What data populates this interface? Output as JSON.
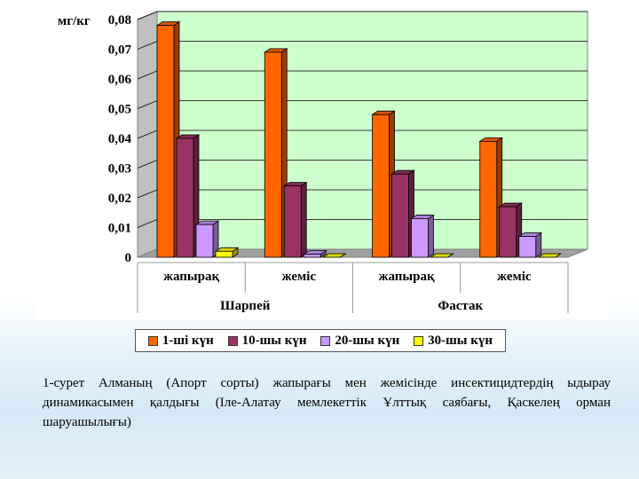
{
  "chart_data": {
    "type": "bar",
    "ylabel": "мг/кг",
    "ylim": [
      0,
      0.08
    ],
    "yticks": [
      "0",
      "0,01",
      "0,02",
      "0,03",
      "0,04",
      "0,05",
      "0,06",
      "0,07",
      "0,08"
    ],
    "categories": [
      "жапырақ",
      "жеміс",
      "жапырақ",
      "жеміс"
    ],
    "groups": [
      "Шарпей",
      "Фастак"
    ],
    "series": [
      {
        "name": "1-ші күн",
        "color": "#ff6600",
        "values": [
          0.078,
          0.069,
          0.048,
          0.039
        ]
      },
      {
        "name": "10-шы күн",
        "color": "#993366",
        "values": [
          0.04,
          0.024,
          0.028,
          0.017
        ]
      },
      {
        "name": "20-шы күн",
        "color": "#cc99ff",
        "values": [
          0.011,
          0.001,
          0.013,
          0.007
        ]
      },
      {
        "name": "30-шы күн",
        "color": "#ffff00",
        "values": [
          0.002,
          0.0,
          0.0,
          0.0
        ]
      }
    ],
    "grid": true,
    "legend": "bottom",
    "plot_background": "#ccffcc"
  },
  "caption": "1-сурет Алманың (Апорт сорты) жапырағы мен жемісінде инсектицидтердің ыдырау динамикасымен қалдығы (Іле-Алатау мемлекеттік Ұлттық саябағы, Қаскелең орман шаруашылығы)"
}
